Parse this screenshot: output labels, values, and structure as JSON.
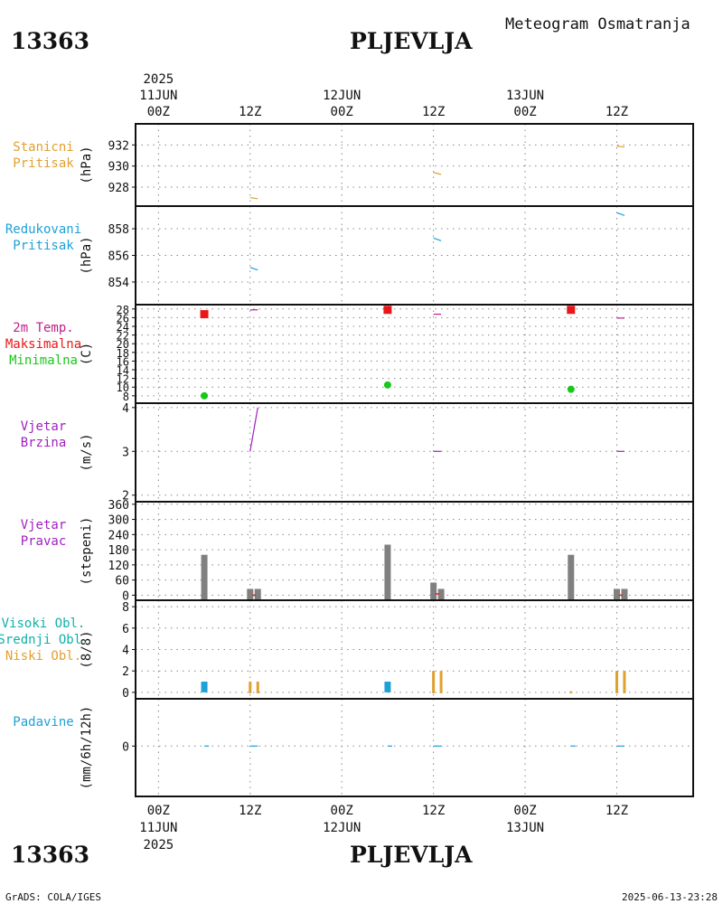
{
  "header": {
    "station_id": "13363",
    "station_name": "PLJEVLJA",
    "product": "Meteogram Osmatranja"
  },
  "footer": {
    "left": "GrADS: COLA/IGES",
    "right": "2025-06-13-23:28"
  },
  "time_axis": {
    "year": "2025",
    "ticks": [
      {
        "hour": 0,
        "top": "00Z",
        "date": "11JUN"
      },
      {
        "hour": 12,
        "top": "12Z",
        "date": ""
      },
      {
        "hour": 24,
        "top": "00Z",
        "date": "12JUN"
      },
      {
        "hour": 36,
        "top": "12Z",
        "date": ""
      },
      {
        "hour": 48,
        "top": "00Z",
        "date": "13JUN"
      },
      {
        "hour": 60,
        "top": "12Z",
        "date": ""
      }
    ],
    "range_hours": [
      -3,
      70
    ]
  },
  "colors": {
    "orange": "#e0a030",
    "blue": "#1ea0d8",
    "magenta": "#c0208a",
    "red": "#e81818",
    "green": "#18c818",
    "purple": "#a020c0",
    "teal": "#10b0a8",
    "gray": "#808080"
  },
  "chart_data": [
    {
      "type": "line",
      "labels": [
        "Stanicni",
        "Pritisak"
      ],
      "label_colors": [
        "orange",
        "orange"
      ],
      "ylabel": "(hPa)",
      "ylim": [
        926.2,
        934.0
      ],
      "yticks": [
        928,
        930,
        932
      ],
      "series": [
        {
          "name": "Stanicni Pritisak",
          "color": "orange",
          "x": [
            12,
            13
          ],
          "y": [
            927.0,
            926.9
          ]
        },
        {
          "name": "Stanicni Pritisak",
          "color": "orange",
          "x": [
            36,
            37
          ],
          "y": [
            929.4,
            929.2
          ]
        },
        {
          "name": "Stanicni Pritisak",
          "color": "orange",
          "x": [
            60,
            61
          ],
          "y": [
            931.9,
            931.8
          ]
        }
      ]
    },
    {
      "type": "line",
      "labels": [
        "Redukovani",
        "Pritisak"
      ],
      "label_colors": [
        "blue",
        "blue"
      ],
      "ylabel": "(hPa)",
      "ylim": [
        852.3,
        859.7
      ],
      "yticks": [
        854,
        856,
        858
      ],
      "series": [
        {
          "name": "Redukovani Pritisak",
          "color": "blue",
          "x": [
            12,
            13
          ],
          "y": [
            855.1,
            854.9
          ]
        },
        {
          "name": "Redukovani Pritisak",
          "color": "blue",
          "x": [
            36,
            37
          ],
          "y": [
            857.3,
            857.1
          ]
        },
        {
          "name": "Redukovani Pritisak",
          "color": "blue",
          "x": [
            60,
            61
          ],
          "y": [
            859.2,
            859.0
          ]
        }
      ]
    },
    {
      "type": "scatter",
      "labels": [
        "2m Temp.",
        "Maksimalna",
        "Minimalna"
      ],
      "label_colors": [
        "magenta",
        "red",
        "green"
      ],
      "ylabel": "(C)",
      "ylim": [
        6.3,
        29.0
      ],
      "yticks": [
        8,
        10,
        12,
        14,
        16,
        18,
        20,
        22,
        24,
        26,
        28
      ],
      "temp_lines": [
        {
          "x": [
            12,
            13
          ],
          "y": [
            27.8,
            27.8
          ]
        },
        {
          "x": [
            36,
            37
          ],
          "y": [
            26.8,
            26.8
          ]
        },
        {
          "x": [
            60,
            61
          ],
          "y": [
            25.9,
            25.9
          ]
        }
      ],
      "maxima": [
        {
          "x": 6,
          "y": 26.8
        },
        {
          "x": 30,
          "y": 27.8
        },
        {
          "x": 54,
          "y": 27.8
        }
      ],
      "minima": [
        {
          "x": 6,
          "y": 8.0
        },
        {
          "x": 30,
          "y": 10.5
        },
        {
          "x": 54,
          "y": 9.5
        }
      ]
    },
    {
      "type": "line",
      "labels": [
        "Vjetar",
        "Brzina"
      ],
      "label_colors": [
        "purple",
        "purple"
      ],
      "ylabel": "(m/s)",
      "ylim": [
        1.85,
        4.1
      ],
      "yticks": [
        2,
        3,
        4
      ],
      "series": [
        {
          "name": "Brzina",
          "color": "purple",
          "x": [
            12,
            13
          ],
          "y": [
            3.0,
            4.0
          ]
        },
        {
          "name": "Brzina",
          "color": "purple",
          "x": [
            36,
            37
          ],
          "y": [
            3.0,
            3.0
          ]
        },
        {
          "name": "Brzina",
          "color": "purple",
          "x": [
            60,
            61
          ],
          "y": [
            3.0,
            3.0
          ]
        }
      ]
    },
    {
      "type": "bar",
      "labels": [
        "Vjetar",
        "Pravac"
      ],
      "label_colors": [
        "purple",
        "purple"
      ],
      "ylabel": "(stepeni)",
      "ylim": [
        -20,
        370
      ],
      "yticks": [
        0,
        60,
        120,
        180,
        240,
        300,
        360
      ],
      "bars": [
        {
          "x": 6,
          "value": 160
        },
        {
          "x": 12,
          "value": 25
        },
        {
          "x": 13,
          "value": 25
        },
        {
          "x": 30,
          "value": 200
        },
        {
          "x": 36,
          "value": 50
        },
        {
          "x": 37,
          "value": 25
        },
        {
          "x": 54,
          "value": 160
        },
        {
          "x": 60,
          "value": 25
        },
        {
          "x": 61,
          "value": 25
        }
      ],
      "markers": [
        {
          "x": 12.5,
          "value": 0
        },
        {
          "x": 36.5,
          "value": 5
        },
        {
          "x": 60.5,
          "value": 0
        }
      ]
    },
    {
      "type": "bar",
      "labels": [
        "Visoki Obl.",
        "Srednji Obl.",
        "Niski Obl."
      ],
      "label_colors": [
        "teal",
        "teal",
        "orange"
      ],
      "ylabel": "(8/8)",
      "ylim": [
        -0.6,
        8.6
      ],
      "yticks": [
        0,
        2,
        4,
        6,
        8
      ],
      "high_clouds": [
        {
          "x": 6,
          "value": 1
        },
        {
          "x": 30,
          "value": 1
        }
      ],
      "low_clouds": [
        {
          "x": 12,
          "value": 1
        },
        {
          "x": 13,
          "value": 1
        },
        {
          "x": 36,
          "value": 2
        },
        {
          "x": 37,
          "value": 2
        },
        {
          "x": 54,
          "value": 0.1
        },
        {
          "x": 60,
          "value": 2
        },
        {
          "x": 61,
          "value": 2
        }
      ]
    },
    {
      "type": "line",
      "labels": [
        "Padavine"
      ],
      "label_colors": [
        "blue"
      ],
      "ylabel": "(mm/6h/12h)",
      "ylim": [
        -4.9,
        4.6
      ],
      "yticks": [
        0
      ],
      "series": [
        {
          "name": "Padavine",
          "color": "blue",
          "x": [
            6,
            6.6
          ],
          "y": [
            0,
            0
          ]
        },
        {
          "name": "Padavine",
          "color": "blue",
          "x": [
            12,
            13
          ],
          "y": [
            0,
            0
          ]
        },
        {
          "name": "Padavine",
          "color": "blue",
          "x": [
            30,
            30.6
          ],
          "y": [
            0,
            0
          ]
        },
        {
          "name": "Padavine",
          "color": "blue",
          "x": [
            36,
            37
          ],
          "y": [
            0,
            0
          ]
        },
        {
          "name": "Padavine",
          "color": "blue",
          "x": [
            54,
            54.6
          ],
          "y": [
            0,
            0
          ]
        },
        {
          "name": "Padavine",
          "color": "blue",
          "x": [
            60,
            61
          ],
          "y": [
            0,
            0
          ]
        }
      ]
    }
  ]
}
